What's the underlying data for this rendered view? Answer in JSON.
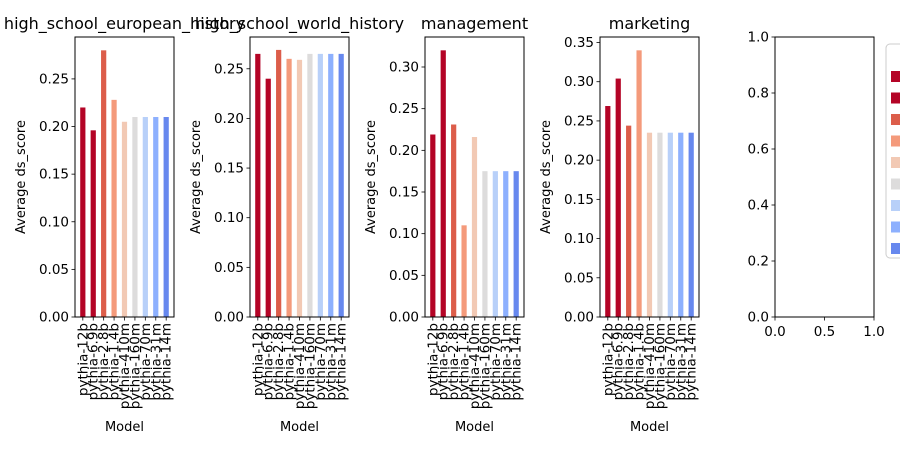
{
  "chart_data": {
    "type": "bar",
    "ylabel": "Average ds_score",
    "xlabel": "Model",
    "categories": [
      "pythia-12b",
      "pythia-6.9b",
      "pythia-2.8b",
      "pythia-1.4b",
      "pythia-410m",
      "pythia-160m",
      "pythia-70m",
      "pythia-31m",
      "pythia-14m"
    ],
    "bar_colors": [
      "#b40426",
      "#b40426",
      "#dc5d4a",
      "#f49a7b",
      "#f2c9b4",
      "#dddcdc",
      "#b8d0f9",
      "#8db0fe",
      "#6788ee"
    ],
    "legend": {
      "placement": "right, outside plots",
      "colors": [
        "#b40426",
        "#b40426",
        "#dc5d4a",
        "#f49a7b",
        "#f2c9b4",
        "#dddcdc",
        "#b8d0f9",
        "#8db0fe",
        "#6788ee"
      ]
    },
    "panels": [
      {
        "title": "high_school_european_history",
        "values": [
          0.22,
          0.196,
          0.28,
          0.228,
          0.205,
          0.21,
          0.21,
          0.21,
          0.21
        ],
        "ylim": [
          0,
          0.294
        ],
        "yticks": [
          0.0,
          0.05,
          0.1,
          0.15,
          0.2,
          0.25
        ],
        "ytick_labels": [
          "0.00",
          "0.05",
          "0.10",
          "0.15",
          "0.20",
          "0.25"
        ]
      },
      {
        "title": "high_school_world_history",
        "values": [
          0.265,
          0.24,
          0.269,
          0.26,
          0.259,
          0.265,
          0.265,
          0.265,
          0.265
        ],
        "ylim": [
          0,
          0.282
        ],
        "yticks": [
          0.0,
          0.05,
          0.1,
          0.15,
          0.2,
          0.25
        ],
        "ytick_labels": [
          "0.00",
          "0.05",
          "0.10",
          "0.15",
          "0.20",
          "0.25"
        ]
      },
      {
        "title": "management",
        "values": [
          0.219,
          0.32,
          0.231,
          0.11,
          0.216,
          0.175,
          0.175,
          0.175,
          0.175
        ],
        "ylim": [
          0,
          0.336
        ],
        "yticks": [
          0.0,
          0.05,
          0.1,
          0.15,
          0.2,
          0.25,
          0.3
        ],
        "ytick_labels": [
          "0.00",
          "0.05",
          "0.10",
          "0.15",
          "0.20",
          "0.25",
          "0.30"
        ]
      },
      {
        "title": "marketing",
        "values": [
          0.269,
          0.304,
          0.244,
          0.34,
          0.235,
          0.235,
          0.235,
          0.235,
          0.235
        ],
        "ylim": [
          0,
          0.357
        ],
        "yticks": [
          0.0,
          0.05,
          0.1,
          0.15,
          0.2,
          0.25,
          0.3,
          0.35
        ],
        "ytick_labels": [
          "0.00",
          "0.05",
          "0.10",
          "0.15",
          "0.20",
          "0.25",
          "0.30",
          "0.35"
        ]
      }
    ],
    "empty_axes": {
      "xlim": [
        0,
        1
      ],
      "ylim": [
        0,
        1
      ],
      "xticks": [
        0.0,
        0.5,
        1.0
      ],
      "xtick_labels": [
        "0.0",
        "0.5",
        "1.0"
      ],
      "yticks": [
        0.0,
        0.2,
        0.4,
        0.6,
        0.8,
        1.0
      ],
      "ytick_labels": [
        "0.0",
        "0.2",
        "0.4",
        "0.6",
        "0.8",
        "1.0"
      ]
    }
  }
}
